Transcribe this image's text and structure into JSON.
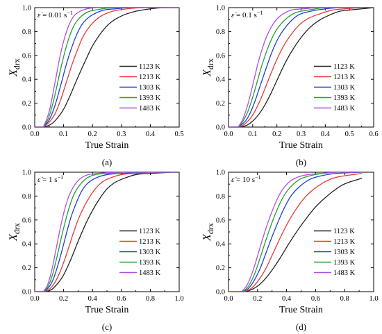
{
  "colors": {
    "1123 K": "#222222",
    "1213 K": "#e8392f",
    "1303 K": "#1f3bd8",
    "1393 K": "#1fa52c",
    "1483 K": "#b04ee0"
  },
  "chart_data": [
    {
      "type": "line",
      "panel_label": "(a)",
      "annotation": {
        "prefix": "ε̇",
        "value": " = 0.01 s",
        "sup": "−1"
      },
      "xlabel": "True Strain",
      "ylabel": {
        "main": "X",
        "sub": "drx"
      },
      "xlim": [
        0,
        0.5
      ],
      "ylim": [
        0,
        1.0
      ],
      "xticks": [
        0.0,
        0.1,
        0.2,
        0.3,
        0.4,
        0.5
      ],
      "xtick_labels": [
        "0.0",
        "0.1",
        "0.2",
        "0.3",
        "0.4",
        "0.5"
      ],
      "yticks": [
        0.0,
        0.2,
        0.4,
        0.6,
        0.8,
        1.0
      ],
      "ytick_labels": [
        "0.0",
        "0.2",
        "0.4",
        "0.6",
        "0.8",
        "1.0"
      ],
      "legend": "bottom-right",
      "series": [
        {
          "name": "1123 K",
          "onset": 0.035,
          "x_end": 0.5,
          "x": [
            0.035,
            0.06,
            0.08,
            0.1,
            0.12,
            0.15,
            0.18,
            0.2,
            0.23,
            0.26,
            0.3,
            0.35,
            0.4,
            0.45,
            0.5
          ],
          "y": [
            0.0,
            0.03,
            0.08,
            0.15,
            0.25,
            0.42,
            0.58,
            0.68,
            0.79,
            0.87,
            0.93,
            0.97,
            0.99,
            1.0,
            1.0
          ]
        },
        {
          "name": "1213 K",
          "onset": 0.03,
          "x_end": 0.5,
          "x": [
            0.03,
            0.05,
            0.07,
            0.09,
            0.11,
            0.13,
            0.15,
            0.17,
            0.2,
            0.23,
            0.27,
            0.32,
            0.38,
            0.45,
            0.5
          ],
          "y": [
            0.0,
            0.04,
            0.11,
            0.23,
            0.38,
            0.53,
            0.66,
            0.77,
            0.87,
            0.93,
            0.97,
            0.99,
            1.0,
            1.0,
            1.0
          ]
        },
        {
          "name": "1303 K",
          "onset": 0.03,
          "x_end": 0.5,
          "x": [
            0.03,
            0.05,
            0.07,
            0.09,
            0.11,
            0.13,
            0.15,
            0.17,
            0.2,
            0.24,
            0.28,
            0.33,
            0.4,
            0.5
          ],
          "y": [
            0.0,
            0.06,
            0.18,
            0.35,
            0.53,
            0.68,
            0.8,
            0.88,
            0.94,
            0.98,
            0.99,
            1.0,
            1.0,
            1.0
          ]
        },
        {
          "name": "1393 K",
          "onset": 0.03,
          "x_end": 0.5,
          "x": [
            0.03,
            0.05,
            0.07,
            0.09,
            0.11,
            0.13,
            0.15,
            0.18,
            0.21,
            0.25,
            0.3,
            0.38,
            0.5
          ],
          "y": [
            0.0,
            0.09,
            0.27,
            0.49,
            0.68,
            0.82,
            0.9,
            0.96,
            0.98,
            0.995,
            1.0,
            1.0,
            1.0
          ]
        },
        {
          "name": "1483 K",
          "onset": 0.03,
          "x_end": 0.5,
          "x": [
            0.03,
            0.05,
            0.07,
            0.09,
            0.11,
            0.13,
            0.15,
            0.18,
            0.22,
            0.27,
            0.35,
            0.5
          ],
          "y": [
            0.0,
            0.13,
            0.37,
            0.62,
            0.8,
            0.91,
            0.96,
            0.99,
            1.0,
            1.0,
            1.0,
            1.0
          ]
        }
      ]
    },
    {
      "type": "line",
      "panel_label": "(b)",
      "annotation": {
        "prefix": "ε̇",
        "value": " = 0.1 s",
        "sup": "−1"
      },
      "xlabel": "True Strain",
      "ylabel": {
        "main": "X",
        "sub": "drx"
      },
      "xlim": [
        0,
        0.6
      ],
      "ylim": [
        0,
        1.0
      ],
      "xticks": [
        0.0,
        0.1,
        0.2,
        0.3,
        0.4,
        0.5,
        0.6
      ],
      "xtick_labels": [
        "0.0",
        "0.1",
        "0.2",
        "0.3",
        "0.4",
        "0.5",
        "0.6"
      ],
      "yticks": [
        0.0,
        0.2,
        0.4,
        0.6,
        0.8,
        1.0
      ],
      "ytick_labels": [
        "0.0",
        "0.2",
        "0.4",
        "0.6",
        "0.8",
        "1.0"
      ],
      "legend": "bottom-right",
      "series": [
        {
          "name": "1123 K",
          "onset": 0.05,
          "x_end": 0.6,
          "x": [
            0.05,
            0.08,
            0.11,
            0.14,
            0.17,
            0.2,
            0.23,
            0.26,
            0.3,
            0.34,
            0.38,
            0.42,
            0.46,
            0.5,
            0.55,
            0.6
          ],
          "y": [
            0.0,
            0.02,
            0.07,
            0.15,
            0.26,
            0.39,
            0.52,
            0.63,
            0.75,
            0.84,
            0.9,
            0.94,
            0.97,
            0.98,
            0.99,
            1.0
          ]
        },
        {
          "name": "1213 K",
          "onset": 0.045,
          "x_end": 0.55,
          "x": [
            0.045,
            0.07,
            0.1,
            0.13,
            0.16,
            0.19,
            0.22,
            0.25,
            0.29,
            0.33,
            0.38,
            0.43,
            0.48,
            0.55
          ],
          "y": [
            0.0,
            0.03,
            0.1,
            0.22,
            0.37,
            0.52,
            0.65,
            0.75,
            0.85,
            0.91,
            0.95,
            0.98,
            0.99,
            1.0
          ]
        },
        {
          "name": "1303 K",
          "onset": 0.04,
          "x_end": 0.55,
          "x": [
            0.04,
            0.07,
            0.09,
            0.11,
            0.13,
            0.15,
            0.18,
            0.21,
            0.25,
            0.29,
            0.34,
            0.4,
            0.47,
            0.55
          ],
          "y": [
            0.0,
            0.05,
            0.12,
            0.22,
            0.34,
            0.46,
            0.63,
            0.76,
            0.87,
            0.94,
            0.97,
            0.99,
            1.0,
            1.0
          ]
        },
        {
          "name": "1393 K",
          "onset": 0.04,
          "x_end": 0.55,
          "x": [
            0.04,
            0.06,
            0.08,
            0.1,
            0.12,
            0.14,
            0.17,
            0.2,
            0.24,
            0.28,
            0.33,
            0.4,
            0.48,
            0.55
          ],
          "y": [
            0.0,
            0.05,
            0.13,
            0.25,
            0.39,
            0.53,
            0.7,
            0.82,
            0.91,
            0.96,
            0.98,
            1.0,
            1.0,
            1.0
          ]
        },
        {
          "name": "1483 K",
          "onset": 0.04,
          "x_end": 0.55,
          "x": [
            0.04,
            0.06,
            0.08,
            0.1,
            0.12,
            0.14,
            0.16,
            0.19,
            0.22,
            0.26,
            0.31,
            0.37,
            0.45,
            0.55
          ],
          "y": [
            0.0,
            0.07,
            0.19,
            0.35,
            0.52,
            0.66,
            0.77,
            0.88,
            0.94,
            0.98,
            0.99,
            1.0,
            1.0,
            1.0
          ]
        }
      ]
    },
    {
      "type": "line",
      "panel_label": "(c)",
      "annotation": {
        "prefix": "ε̇",
        "value": " = 1 s",
        "sup": "−1"
      },
      "xlabel": "True Strain",
      "ylabel": {
        "main": "X",
        "sub": "drx"
      },
      "xlim": [
        0,
        1.0
      ],
      "ylim": [
        0,
        1.0
      ],
      "xticks": [
        0.0,
        0.2,
        0.4,
        0.6,
        0.8,
        1.0
      ],
      "xtick_labels": [
        "0.0",
        "0.2",
        "0.4",
        "0.6",
        "0.8",
        "1.0"
      ],
      "yticks": [
        0.0,
        0.2,
        0.4,
        0.6,
        0.8,
        1.0
      ],
      "ytick_labels": [
        "0.0",
        "0.2",
        "0.4",
        "0.6",
        "0.8",
        "1.0"
      ],
      "legend": "bottom-right",
      "series": [
        {
          "name": "1123 K",
          "onset": 0.08,
          "x_end": 0.95,
          "x": [
            0.08,
            0.12,
            0.16,
            0.2,
            0.25,
            0.3,
            0.35,
            0.4,
            0.45,
            0.5,
            0.55,
            0.6,
            0.7,
            0.8,
            0.95
          ],
          "y": [
            0.0,
            0.02,
            0.07,
            0.14,
            0.27,
            0.42,
            0.56,
            0.68,
            0.78,
            0.86,
            0.91,
            0.94,
            0.98,
            0.99,
            1.0
          ]
        },
        {
          "name": "1213 K",
          "onset": 0.07,
          "x_end": 0.95,
          "x": [
            0.07,
            0.11,
            0.15,
            0.19,
            0.23,
            0.27,
            0.31,
            0.35,
            0.4,
            0.45,
            0.5,
            0.6,
            0.7,
            0.8,
            0.95
          ],
          "y": [
            0.0,
            0.03,
            0.1,
            0.21,
            0.35,
            0.5,
            0.63,
            0.73,
            0.83,
            0.9,
            0.94,
            0.98,
            0.99,
            1.0,
            1.0
          ]
        },
        {
          "name": "1303 K",
          "onset": 0.065,
          "x_end": 0.95,
          "x": [
            0.065,
            0.1,
            0.13,
            0.16,
            0.19,
            0.22,
            0.25,
            0.28,
            0.32,
            0.36,
            0.42,
            0.5,
            0.6,
            0.75,
            0.95
          ],
          "y": [
            0.0,
            0.04,
            0.11,
            0.22,
            0.35,
            0.49,
            0.62,
            0.72,
            0.83,
            0.9,
            0.95,
            0.98,
            0.99,
            1.0,
            1.0
          ]
        },
        {
          "name": "1393 K",
          "onset": 0.06,
          "x_end": 0.95,
          "x": [
            0.06,
            0.09,
            0.12,
            0.15,
            0.18,
            0.21,
            0.24,
            0.27,
            0.31,
            0.36,
            0.42,
            0.5,
            0.62,
            0.8,
            0.95
          ],
          "y": [
            0.0,
            0.04,
            0.13,
            0.27,
            0.43,
            0.58,
            0.71,
            0.81,
            0.89,
            0.95,
            0.98,
            0.99,
            1.0,
            1.0,
            1.0
          ]
        },
        {
          "name": "1483 K",
          "onset": 0.06,
          "x_end": 0.95,
          "x": [
            0.06,
            0.09,
            0.12,
            0.15,
            0.18,
            0.21,
            0.24,
            0.28,
            0.32,
            0.37,
            0.44,
            0.55,
            0.7,
            0.95
          ],
          "y": [
            0.0,
            0.06,
            0.19,
            0.37,
            0.55,
            0.7,
            0.81,
            0.9,
            0.95,
            0.98,
            0.99,
            1.0,
            1.0,
            1.0
          ]
        }
      ]
    },
    {
      "type": "line",
      "panel_label": "(d)",
      "annotation": {
        "prefix": "ε̇",
        "value": " = 10 s",
        "sup": "−1"
      },
      "xlabel": "True Strain",
      "ylabel": {
        "main": "X",
        "sub": "drx"
      },
      "xlim": [
        0,
        1.0
      ],
      "ylim": [
        0,
        1.0
      ],
      "xticks": [
        0.0,
        0.2,
        0.4,
        0.6,
        0.8,
        1.0
      ],
      "xtick_labels": [
        "0.0",
        "0.2",
        "0.4",
        "0.6",
        "0.8",
        "1.0"
      ],
      "yticks": [
        0.0,
        0.2,
        0.4,
        0.6,
        0.8,
        1.0
      ],
      "ytick_labels": [
        "0.0",
        "0.2",
        "0.4",
        "0.6",
        "0.8",
        "1.0"
      ],
      "legend": "bottom-right",
      "series": [
        {
          "name": "1123 K",
          "onset": 0.12,
          "x_end": 0.92,
          "x": [
            0.12,
            0.18,
            0.24,
            0.3,
            0.36,
            0.42,
            0.48,
            0.54,
            0.6,
            0.66,
            0.72,
            0.78,
            0.84,
            0.92
          ],
          "y": [
            0.0,
            0.03,
            0.09,
            0.18,
            0.29,
            0.41,
            0.52,
            0.62,
            0.71,
            0.78,
            0.84,
            0.89,
            0.92,
            0.95
          ]
        },
        {
          "name": "1213 K",
          "onset": 0.11,
          "x_end": 0.92,
          "x": [
            0.11,
            0.16,
            0.21,
            0.26,
            0.31,
            0.36,
            0.41,
            0.46,
            0.52,
            0.58,
            0.65,
            0.72,
            0.8,
            0.92
          ],
          "y": [
            0.0,
            0.03,
            0.1,
            0.2,
            0.33,
            0.46,
            0.58,
            0.68,
            0.78,
            0.85,
            0.91,
            0.95,
            0.97,
            0.99
          ]
        },
        {
          "name": "1303 K",
          "onset": 0.1,
          "x_end": 0.92,
          "x": [
            0.1,
            0.14,
            0.18,
            0.22,
            0.26,
            0.3,
            0.34,
            0.38,
            0.43,
            0.49,
            0.56,
            0.64,
            0.74,
            0.92
          ],
          "y": [
            0.0,
            0.03,
            0.1,
            0.2,
            0.33,
            0.46,
            0.58,
            0.69,
            0.8,
            0.88,
            0.94,
            0.97,
            0.99,
            1.0
          ]
        },
        {
          "name": "1393 K",
          "onset": 0.1,
          "x_end": 0.92,
          "x": [
            0.1,
            0.14,
            0.18,
            0.22,
            0.26,
            0.3,
            0.34,
            0.38,
            0.43,
            0.49,
            0.56,
            0.65,
            0.76,
            0.92
          ],
          "y": [
            0.0,
            0.05,
            0.15,
            0.29,
            0.44,
            0.58,
            0.7,
            0.8,
            0.88,
            0.94,
            0.97,
            0.99,
            1.0,
            1.0
          ]
        },
        {
          "name": "1483 K",
          "onset": 0.09,
          "x_end": 0.92,
          "x": [
            0.09,
            0.13,
            0.17,
            0.21,
            0.25,
            0.29,
            0.33,
            0.37,
            0.42,
            0.48,
            0.55,
            0.64,
            0.76,
            0.92
          ],
          "y": [
            0.0,
            0.06,
            0.18,
            0.34,
            0.5,
            0.64,
            0.76,
            0.85,
            0.92,
            0.96,
            0.98,
            0.99,
            1.0,
            1.0
          ]
        }
      ]
    }
  ]
}
